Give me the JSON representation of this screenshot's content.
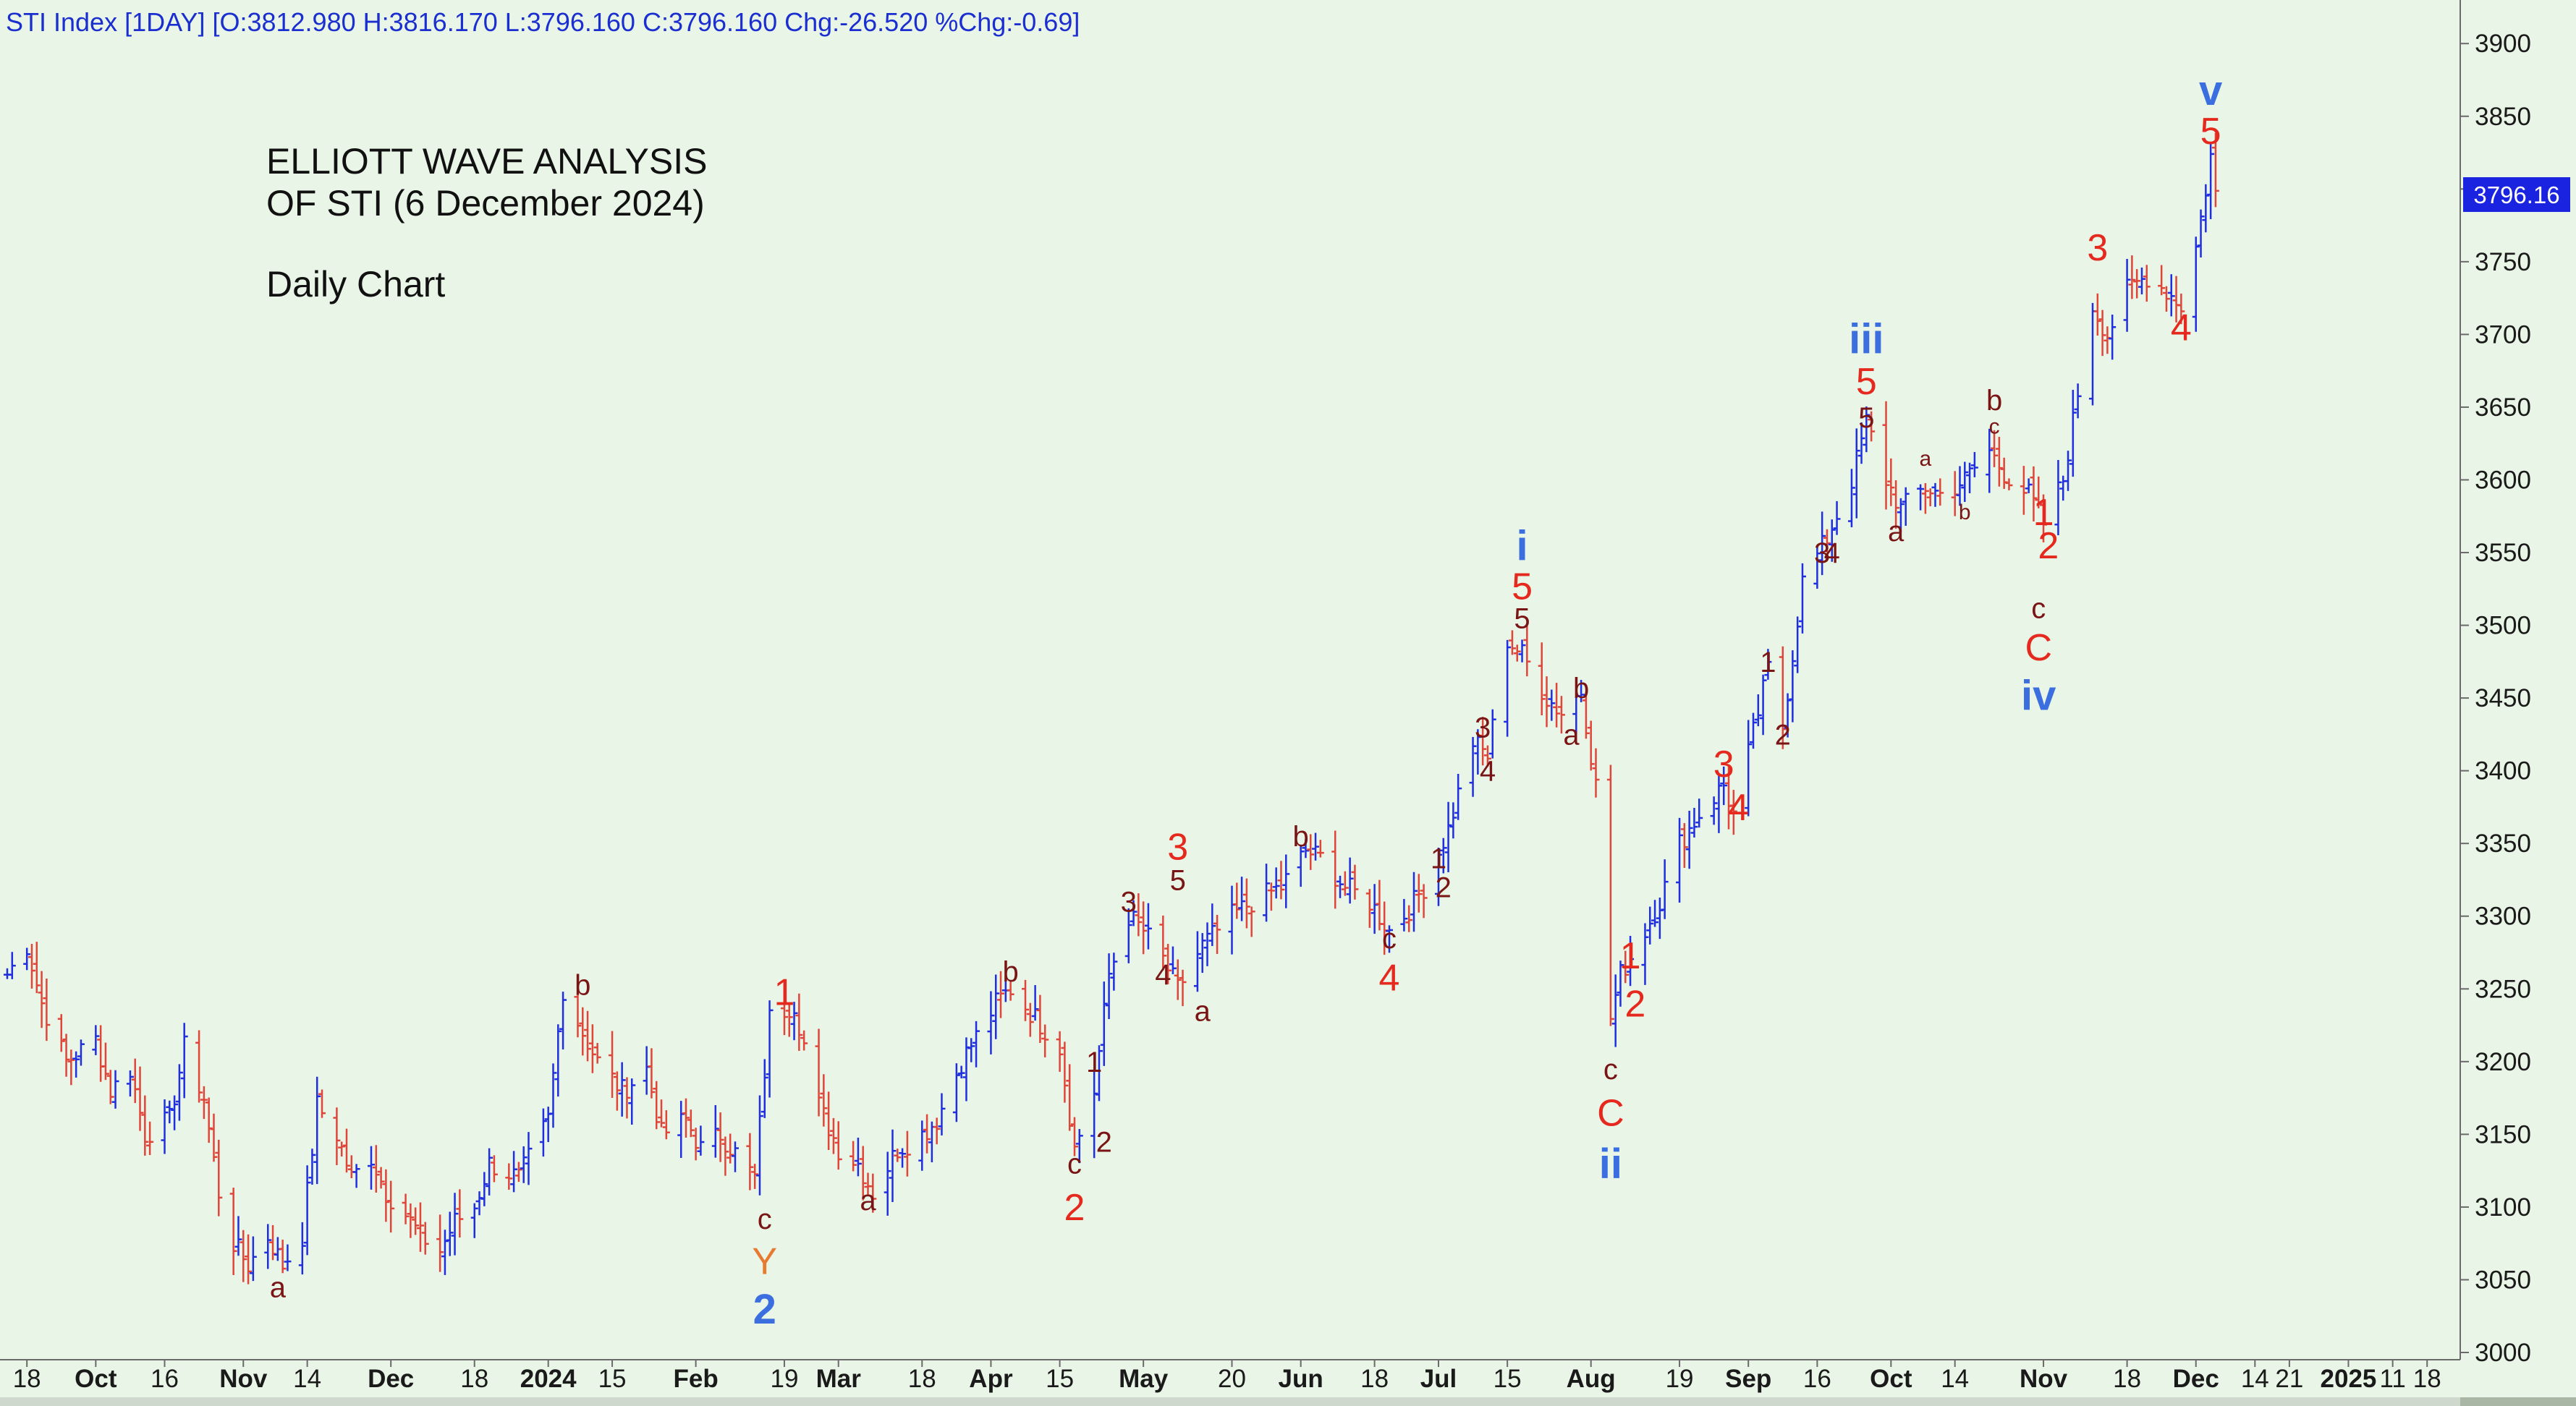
{
  "header": {
    "text": "STI Index [1DAY] [O:3812.980 H:3816.170 L:3796.160 C:3796.160 Chg:-26.520 %Chg:-0.69]"
  },
  "annotation": {
    "line1": "ELLIOTT WAVE ANALYSIS",
    "line2": "OF STI (6 December 2024)",
    "line3": "Daily Chart"
  },
  "colors": {
    "background": "#e9f5e6",
    "up_bar": "#1f2fe0",
    "down_bar": "#e0453a",
    "label_dark": "#7a1515",
    "label_red": "#e5291e",
    "label_blue": "#3b6fe0",
    "label_orange": "#e57a30",
    "last_price_bg": "#1a24e0"
  },
  "chart_data": {
    "type": "ohlc",
    "title": "",
    "xlabel": "",
    "ylabel": "",
    "ylim": [
      3000,
      3920
    ],
    "y_ticks": [
      3000,
      3050,
      3100,
      3150,
      3200,
      3250,
      3300,
      3350,
      3400,
      3450,
      3500,
      3550,
      3600,
      3650,
      3700,
      3750,
      3800,
      3850,
      3900
    ],
    "last_price": {
      "value": 3796.16,
      "label": "3796.16"
    },
    "x_range": [
      "2023-09-14",
      "2025-01-24"
    ],
    "x_ticks": [
      {
        "label": "18",
        "date": "2023-09-18",
        "bold": false
      },
      {
        "label": "Oct",
        "date": "2023-10-02",
        "bold": true
      },
      {
        "label": "16",
        "date": "2023-10-16",
        "bold": false
      },
      {
        "label": "Nov",
        "date": "2023-11-01",
        "bold": true
      },
      {
        "label": "14",
        "date": "2023-11-14",
        "bold": false
      },
      {
        "label": "Dec",
        "date": "2023-12-01",
        "bold": true
      },
      {
        "label": "18",
        "date": "2023-12-18",
        "bold": false
      },
      {
        "label": "2024",
        "date": "2024-01-02",
        "bold": true
      },
      {
        "label": "15",
        "date": "2024-01-15",
        "bold": false
      },
      {
        "label": "Feb",
        "date": "2024-02-01",
        "bold": true
      },
      {
        "label": "19",
        "date": "2024-02-19",
        "bold": false
      },
      {
        "label": "Mar",
        "date": "2024-03-01",
        "bold": true
      },
      {
        "label": "18",
        "date": "2024-03-18",
        "bold": false
      },
      {
        "label": "Apr",
        "date": "2024-04-01",
        "bold": true
      },
      {
        "label": "15",
        "date": "2024-04-15",
        "bold": false
      },
      {
        "label": "May",
        "date": "2024-05-02",
        "bold": true
      },
      {
        "label": "20",
        "date": "2024-05-20",
        "bold": false
      },
      {
        "label": "Jun",
        "date": "2024-06-03",
        "bold": true
      },
      {
        "label": "18",
        "date": "2024-06-18",
        "bold": false
      },
      {
        "label": "Jul",
        "date": "2024-07-01",
        "bold": true
      },
      {
        "label": "15",
        "date": "2024-07-15",
        "bold": false
      },
      {
        "label": "Aug",
        "date": "2024-08-01",
        "bold": true
      },
      {
        "label": "19",
        "date": "2024-08-19",
        "bold": false
      },
      {
        "label": "Sep",
        "date": "2024-09-02",
        "bold": true
      },
      {
        "label": "16",
        "date": "2024-09-16",
        "bold": false
      },
      {
        "label": "Oct",
        "date": "2024-10-01",
        "bold": true
      },
      {
        "label": "14",
        "date": "2024-10-14",
        "bold": false
      },
      {
        "label": "Nov",
        "date": "2024-11-01",
        "bold": true
      },
      {
        "label": "18",
        "date": "2024-11-18",
        "bold": false
      },
      {
        "label": "Dec",
        "date": "2024-12-02",
        "bold": true
      },
      {
        "label": "14",
        "date": "2024-12-14",
        "bold": false
      },
      {
        "label": "21",
        "date": "2024-12-21",
        "bold": false
      },
      {
        "label": "2025",
        "date": "2025-01-02",
        "bold": true
      },
      {
        "label": "11",
        "date": "2025-01-11",
        "bold": false
      },
      {
        "label": "18",
        "date": "2025-01-18",
        "bold": false
      }
    ],
    "price_path": [
      [
        "2023-09-14",
        3260
      ],
      [
        "2023-09-18",
        3280
      ],
      [
        "2023-09-21",
        3240
      ],
      [
        "2023-09-26",
        3200
      ],
      [
        "2023-10-02",
        3215
      ],
      [
        "2023-10-05",
        3180
      ],
      [
        "2023-10-09",
        3195
      ],
      [
        "2023-10-12",
        3150
      ],
      [
        "2023-10-17",
        3160
      ],
      [
        "2023-10-20",
        3210
      ],
      [
        "2023-10-24",
        3175
      ],
      [
        "2023-10-27",
        3110
      ],
      [
        "2023-10-30",
        3075
      ],
      [
        "2023-11-02",
        3060
      ],
      [
        "2023-11-06",
        3080
      ],
      [
        "2023-11-09",
        3060
      ],
      [
        "2023-11-13",
        3080
      ],
      [
        "2023-11-16",
        3170
      ],
      [
        "2023-11-20",
        3150
      ],
      [
        "2023-11-23",
        3120
      ],
      [
        "2023-11-27",
        3135
      ],
      [
        "2023-11-30",
        3110
      ],
      [
        "2023-12-04",
        3095
      ],
      [
        "2023-12-07",
        3080
      ],
      [
        "2023-12-11",
        3070
      ],
      [
        "2023-12-14",
        3090
      ],
      [
        "2023-12-18",
        3100
      ],
      [
        "2023-12-21",
        3130
      ],
      [
        "2023-12-27",
        3120
      ],
      [
        "2024-01-02",
        3160
      ],
      [
        "2024-01-05",
        3250
      ],
      [
        "2024-01-09",
        3220
      ],
      [
        "2024-01-12",
        3200
      ],
      [
        "2024-01-17",
        3180
      ],
      [
        "2024-01-22",
        3195
      ],
      [
        "2024-01-25",
        3150
      ],
      [
        "2024-01-30",
        3160
      ],
      [
        "2024-02-02",
        3140
      ],
      [
        "2024-02-06",
        3150
      ],
      [
        "2024-02-13",
        3120
      ],
      [
        "2024-02-16",
        3230
      ],
      [
        "2024-02-21",
        3240
      ],
      [
        "2024-02-26",
        3170
      ],
      [
        "2024-03-01",
        3140
      ],
      [
        "2024-03-05",
        3130
      ],
      [
        "2024-03-08",
        3110
      ],
      [
        "2024-03-13",
        3140
      ],
      [
        "2024-03-18",
        3150
      ],
      [
        "2024-03-21",
        3160
      ],
      [
        "2024-03-26",
        3200
      ],
      [
        "2024-04-02",
        3240
      ],
      [
        "2024-04-05",
        3250
      ],
      [
        "2024-04-10",
        3230
      ],
      [
        "2024-04-15",
        3210
      ],
      [
        "2024-04-18",
        3140
      ],
      [
        "2024-04-22",
        3180
      ],
      [
        "2024-04-25",
        3260
      ],
      [
        "2024-04-29",
        3300
      ],
      [
        "2024-05-02",
        3290
      ],
      [
        "2024-05-06",
        3270
      ],
      [
        "2024-05-09",
        3250
      ],
      [
        "2024-05-14",
        3280
      ],
      [
        "2024-05-20",
        3300
      ],
      [
        "2024-05-24",
        3310
      ],
      [
        "2024-05-30",
        3320
      ],
      [
        "2024-06-04",
        3345
      ],
      [
        "2024-06-07",
        3340
      ],
      [
        "2024-06-12",
        3320
      ],
      [
        "2024-06-17",
        3310
      ],
      [
        "2024-06-21",
        3290
      ],
      [
        "2024-06-25",
        3305
      ],
      [
        "2024-06-28",
        3320
      ],
      [
        "2024-07-03",
        3360
      ],
      [
        "2024-07-08",
        3420
      ],
      [
        "2024-07-11",
        3410
      ],
      [
        "2024-07-15",
        3490
      ],
      [
        "2024-07-18",
        3480
      ],
      [
        "2024-07-23",
        3450
      ],
      [
        "2024-07-26",
        3440
      ],
      [
        "2024-07-30",
        3455
      ],
      [
        "2024-08-02",
        3390
      ],
      [
        "2024-08-05",
        3230
      ],
      [
        "2024-08-07",
        3260
      ],
      [
        "2024-08-12",
        3290
      ],
      [
        "2024-08-15",
        3310
      ],
      [
        "2024-08-19",
        3350
      ],
      [
        "2024-08-23",
        3370
      ],
      [
        "2024-08-28",
        3390
      ],
      [
        "2024-08-30",
        3370
      ],
      [
        "2024-09-04",
        3440
      ],
      [
        "2024-09-06",
        3470
      ],
      [
        "2024-09-09",
        3430
      ],
      [
        "2024-09-13",
        3530
      ],
      [
        "2024-09-18",
        3560
      ],
      [
        "2024-09-23",
        3600
      ],
      [
        "2024-09-26",
        3640
      ],
      [
        "2024-09-30",
        3600
      ],
      [
        "2024-10-03",
        3580
      ],
      [
        "2024-10-08",
        3595
      ],
      [
        "2024-10-11",
        3590
      ],
      [
        "2024-10-16",
        3600
      ],
      [
        "2024-10-21",
        3620
      ],
      [
        "2024-10-24",
        3605
      ],
      [
        "2024-10-29",
        3590
      ],
      [
        "2024-11-01",
        3570
      ],
      [
        "2024-11-05",
        3600
      ],
      [
        "2024-11-07",
        3640
      ],
      [
        "2024-11-11",
        3720
      ],
      [
        "2024-11-14",
        3700
      ],
      [
        "2024-11-18",
        3730
      ],
      [
        "2024-11-22",
        3740
      ],
      [
        "2024-11-26",
        3730
      ],
      [
        "2024-11-29",
        3720
      ],
      [
        "2024-12-02",
        3760
      ],
      [
        "2024-12-04",
        3800
      ],
      [
        "2024-12-05",
        3822.68
      ],
      [
        "2024-12-06",
        3796.16
      ]
    ],
    "labels": [
      {
        "text": "b",
        "date": "2024-01-09",
        "price": 3253,
        "pos": "above",
        "color": "dark",
        "size": "s"
      },
      {
        "text": "1",
        "date": "2024-02-19",
        "price": 3248,
        "pos": "above",
        "color": "red",
        "size": "m"
      },
      {
        "text": "c",
        "date": "2024-02-15",
        "price": 3092,
        "pos": "below",
        "color": "dark",
        "size": "s"
      },
      {
        "text": "Y",
        "date": "2024-02-15",
        "price": 3063,
        "pos": "below",
        "color": "orange",
        "size": "m"
      },
      {
        "text": "2",
        "date": "2024-02-15",
        "price": 3030,
        "pos": "below",
        "color": "blue",
        "size": "l"
      },
      {
        "text": "a",
        "date": "2023-11-08",
        "price": 3045,
        "pos": "below",
        "color": "dark",
        "size": "s"
      },
      {
        "text": "a",
        "date": "2024-03-07",
        "price": 3105,
        "pos": "below",
        "color": "dark",
        "size": "s"
      },
      {
        "text": "b",
        "date": "2024-04-05",
        "price": 3262,
        "pos": "above",
        "color": "dark",
        "size": "s"
      },
      {
        "text": "1",
        "date": "2024-04-22",
        "price": 3200,
        "pos": "above",
        "color": "dark",
        "size": "s"
      },
      {
        "text": "c",
        "date": "2024-04-18",
        "price": 3130,
        "pos": "below",
        "color": "dark",
        "size": "s"
      },
      {
        "text": "2",
        "date": "2024-04-18",
        "price": 3100,
        "pos": "below",
        "color": "red",
        "size": "m"
      },
      {
        "text": "2",
        "date": "2024-04-24",
        "price": 3145,
        "pos": "below",
        "color": "dark",
        "size": "s"
      },
      {
        "text": "3",
        "date": "2024-04-29",
        "price": 3310,
        "pos": "above",
        "color": "dark",
        "size": "s"
      },
      {
        "text": "5",
        "date": "2024-05-09",
        "price": 3325,
        "pos": "above",
        "color": "dark",
        "size": "s"
      },
      {
        "text": "3",
        "date": "2024-05-09",
        "price": 3348,
        "pos": "above",
        "color": "red",
        "size": "m"
      },
      {
        "text": "4",
        "date": "2024-05-06",
        "price": 3260,
        "pos": "below",
        "color": "dark",
        "size": "s"
      },
      {
        "text": "a",
        "date": "2024-05-14",
        "price": 3235,
        "pos": "below",
        "color": "dark",
        "size": "s"
      },
      {
        "text": "b",
        "date": "2024-06-03",
        "price": 3355,
        "pos": "above",
        "color": "dark",
        "size": "s"
      },
      {
        "text": "c",
        "date": "2024-06-21",
        "price": 3285,
        "pos": "below",
        "color": "dark",
        "size": "s"
      },
      {
        "text": "4",
        "date": "2024-06-21",
        "price": 3258,
        "pos": "below",
        "color": "red",
        "size": "m"
      },
      {
        "text": "1",
        "date": "2024-07-01",
        "price": 3340,
        "pos": "above",
        "color": "dark",
        "size": "s"
      },
      {
        "text": "2",
        "date": "2024-07-02",
        "price": 3320,
        "pos": "below",
        "color": "dark",
        "size": "s"
      },
      {
        "text": "3",
        "date": "2024-07-10",
        "price": 3430,
        "pos": "above",
        "color": "dark",
        "size": "s"
      },
      {
        "text": "4",
        "date": "2024-07-11",
        "price": 3400,
        "pos": "below",
        "color": "dark",
        "size": "s"
      },
      {
        "text": "5",
        "date": "2024-07-18",
        "price": 3505,
        "pos": "above",
        "color": "dark",
        "size": "s"
      },
      {
        "text": "5",
        "date": "2024-07-18",
        "price": 3527,
        "pos": "above",
        "color": "red",
        "size": "m"
      },
      {
        "text": "i",
        "date": "2024-07-18",
        "price": 3555,
        "pos": "above",
        "color": "blue",
        "size": "l"
      },
      {
        "text": "b",
        "date": "2024-07-30",
        "price": 3457,
        "pos": "above",
        "color": "dark",
        "size": "s"
      },
      {
        "text": "a",
        "date": "2024-07-28",
        "price": 3425,
        "pos": "below",
        "color": "dark",
        "size": "s"
      },
      {
        "text": "1",
        "date": "2024-08-09",
        "price": 3273,
        "pos": "above",
        "color": "red",
        "size": "m"
      },
      {
        "text": "c",
        "date": "2024-08-05",
        "price": 3195,
        "pos": "below",
        "color": "dark",
        "size": "s"
      },
      {
        "text": "C",
        "date": "2024-08-05",
        "price": 3165,
        "pos": "below",
        "color": "red",
        "size": "m"
      },
      {
        "text": "ii",
        "date": "2024-08-05",
        "price": 3130,
        "pos": "below",
        "color": "blue",
        "size": "l"
      },
      {
        "text": "2",
        "date": "2024-08-10",
        "price": 3240,
        "pos": "below",
        "color": "red",
        "size": "m"
      },
      {
        "text": "3",
        "date": "2024-08-28",
        "price": 3405,
        "pos": "above",
        "color": "red",
        "size": "m"
      },
      {
        "text": "4",
        "date": "2024-08-31",
        "price": 3375,
        "pos": "below",
        "color": "red",
        "size": "m"
      },
      {
        "text": "1",
        "date": "2024-09-06",
        "price": 3475,
        "pos": "above",
        "color": "dark",
        "size": "s"
      },
      {
        "text": "2",
        "date": "2024-09-09",
        "price": 3425,
        "pos": "below",
        "color": "dark",
        "size": "s"
      },
      {
        "text": "3",
        "date": "2024-09-17",
        "price": 3550,
        "pos": "above",
        "color": "dark",
        "size": "s"
      },
      {
        "text": "4",
        "date": "2024-09-19",
        "price": 3550,
        "pos": "below",
        "color": "dark",
        "size": "s"
      },
      {
        "text": "5",
        "date": "2024-09-26",
        "price": 3643,
        "pos": "above",
        "color": "dark",
        "size": "s"
      },
      {
        "text": "5",
        "date": "2024-09-26",
        "price": 3668,
        "pos": "above",
        "color": "red",
        "size": "m"
      },
      {
        "text": "iii",
        "date": "2024-09-26",
        "price": 3697,
        "pos": "above",
        "color": "blue",
        "size": "l"
      },
      {
        "text": "a",
        "date": "2024-10-02",
        "price": 3565,
        "pos": "below",
        "color": "dark",
        "size": "s"
      },
      {
        "text": "a",
        "date": "2024-10-08",
        "price": 3615,
        "pos": "above",
        "color": "dark",
        "size": "xs"
      },
      {
        "text": "b",
        "date": "2024-10-16",
        "price": 3578,
        "pos": "below",
        "color": "dark",
        "size": "xs"
      },
      {
        "text": "c",
        "date": "2024-10-22",
        "price": 3637,
        "pos": "above",
        "color": "dark",
        "size": "xs"
      },
      {
        "text": "b",
        "date": "2024-10-22",
        "price": 3655,
        "pos": "above",
        "color": "dark",
        "size": "s"
      },
      {
        "text": "1",
        "date": "2024-11-01",
        "price": 3578,
        "pos": "above",
        "color": "red",
        "size": "m"
      },
      {
        "text": "2",
        "date": "2024-11-02",
        "price": 3555,
        "pos": "below",
        "color": "red",
        "size": "m"
      },
      {
        "text": "c",
        "date": "2024-10-31",
        "price": 3512,
        "pos": "below",
        "color": "dark",
        "size": "s"
      },
      {
        "text": "C",
        "date": "2024-10-31",
        "price": 3485,
        "pos": "below",
        "color": "red",
        "size": "m"
      },
      {
        "text": "iv",
        "date": "2024-10-31",
        "price": 3452,
        "pos": "below",
        "color": "blue",
        "size": "l"
      },
      {
        "text": "3",
        "date": "2024-11-12",
        "price": 3760,
        "pos": "above",
        "color": "red",
        "size": "m"
      },
      {
        "text": "4",
        "date": "2024-11-29",
        "price": 3705,
        "pos": "below",
        "color": "red",
        "size": "m"
      },
      {
        "text": "5",
        "date": "2024-12-05",
        "price": 3840,
        "pos": "above",
        "color": "red",
        "size": "m"
      },
      {
        "text": "v",
        "date": "2024-12-05",
        "price": 3868,
        "pos": "above",
        "color": "blue",
        "size": "l"
      }
    ]
  }
}
